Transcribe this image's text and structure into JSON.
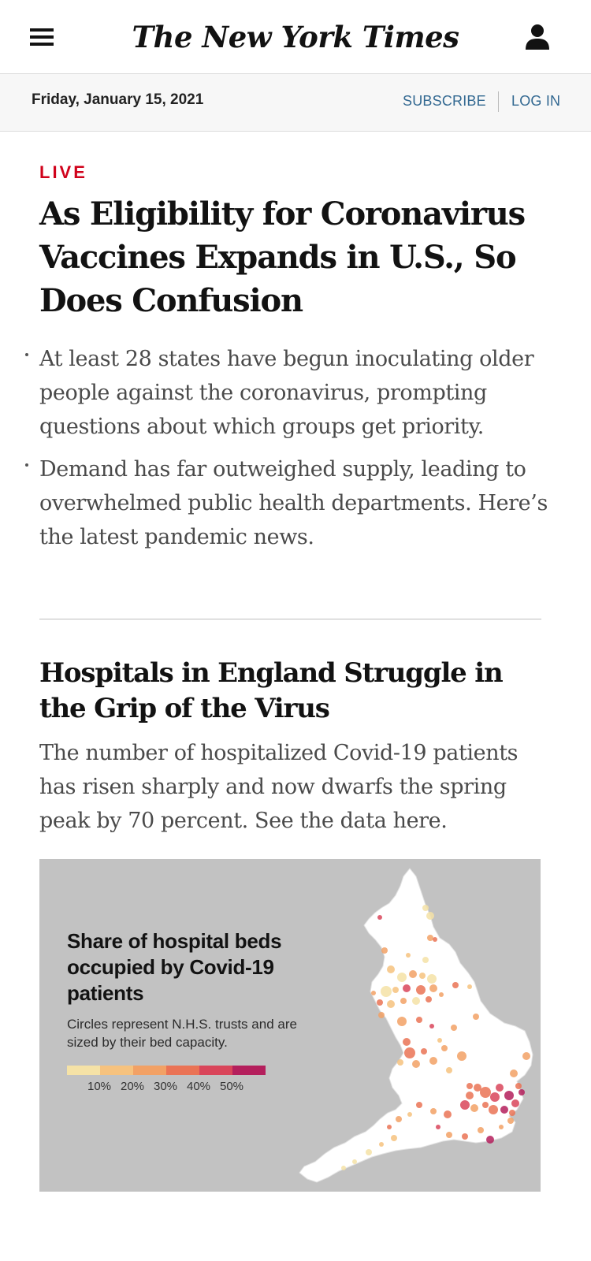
{
  "masthead": {
    "logo_text": "The New York Times",
    "menu_icon": "hamburger-menu-icon",
    "account_icon": "person-icon"
  },
  "datebar": {
    "date": "Friday, January 15, 2021",
    "subscribe_label": "SUBSCRIBE",
    "login_label": "LOG IN"
  },
  "lead_story": {
    "label": "LIVE",
    "headline": "As Eligibility for Coronavirus Vaccines Expands in U.S., So Does Confusion",
    "bullets": [
      "At least 28 states have begun inoculating older people against the coronavirus, prompting questions about which groups get priority.",
      "Demand has far outweighed supply, leading to overwhelmed public health departments. Here’s the latest pandemic news."
    ]
  },
  "second_story": {
    "headline": "Hospitals in England Struggle in the Grip of the Virus",
    "summary": "The number of hospitalized Covid-19 patients has risen sharply and now dwarfs the spring peak by 70 percent. See the data here."
  },
  "graphic": {
    "title": "Share of hospital beds occupied by Covid-19 patients",
    "subtitle": "Circles represent N.H.S. trusts and are sized by their bed capacity.",
    "legend_labels": [
      "10%",
      "20%",
      "30%",
      "40%",
      "50%"
    ],
    "legend_colors": [
      "#f5e2a6",
      "#f6c27e",
      "#f2a165",
      "#ea7355",
      "#d9455a",
      "#b41f5c"
    ],
    "background_color": "#c2c2c2",
    "map_fill": "#ffffff"
  },
  "colors": {
    "live_red": "#d0021b",
    "link_blue": "#326891",
    "text_gray": "#4a4a4a"
  }
}
